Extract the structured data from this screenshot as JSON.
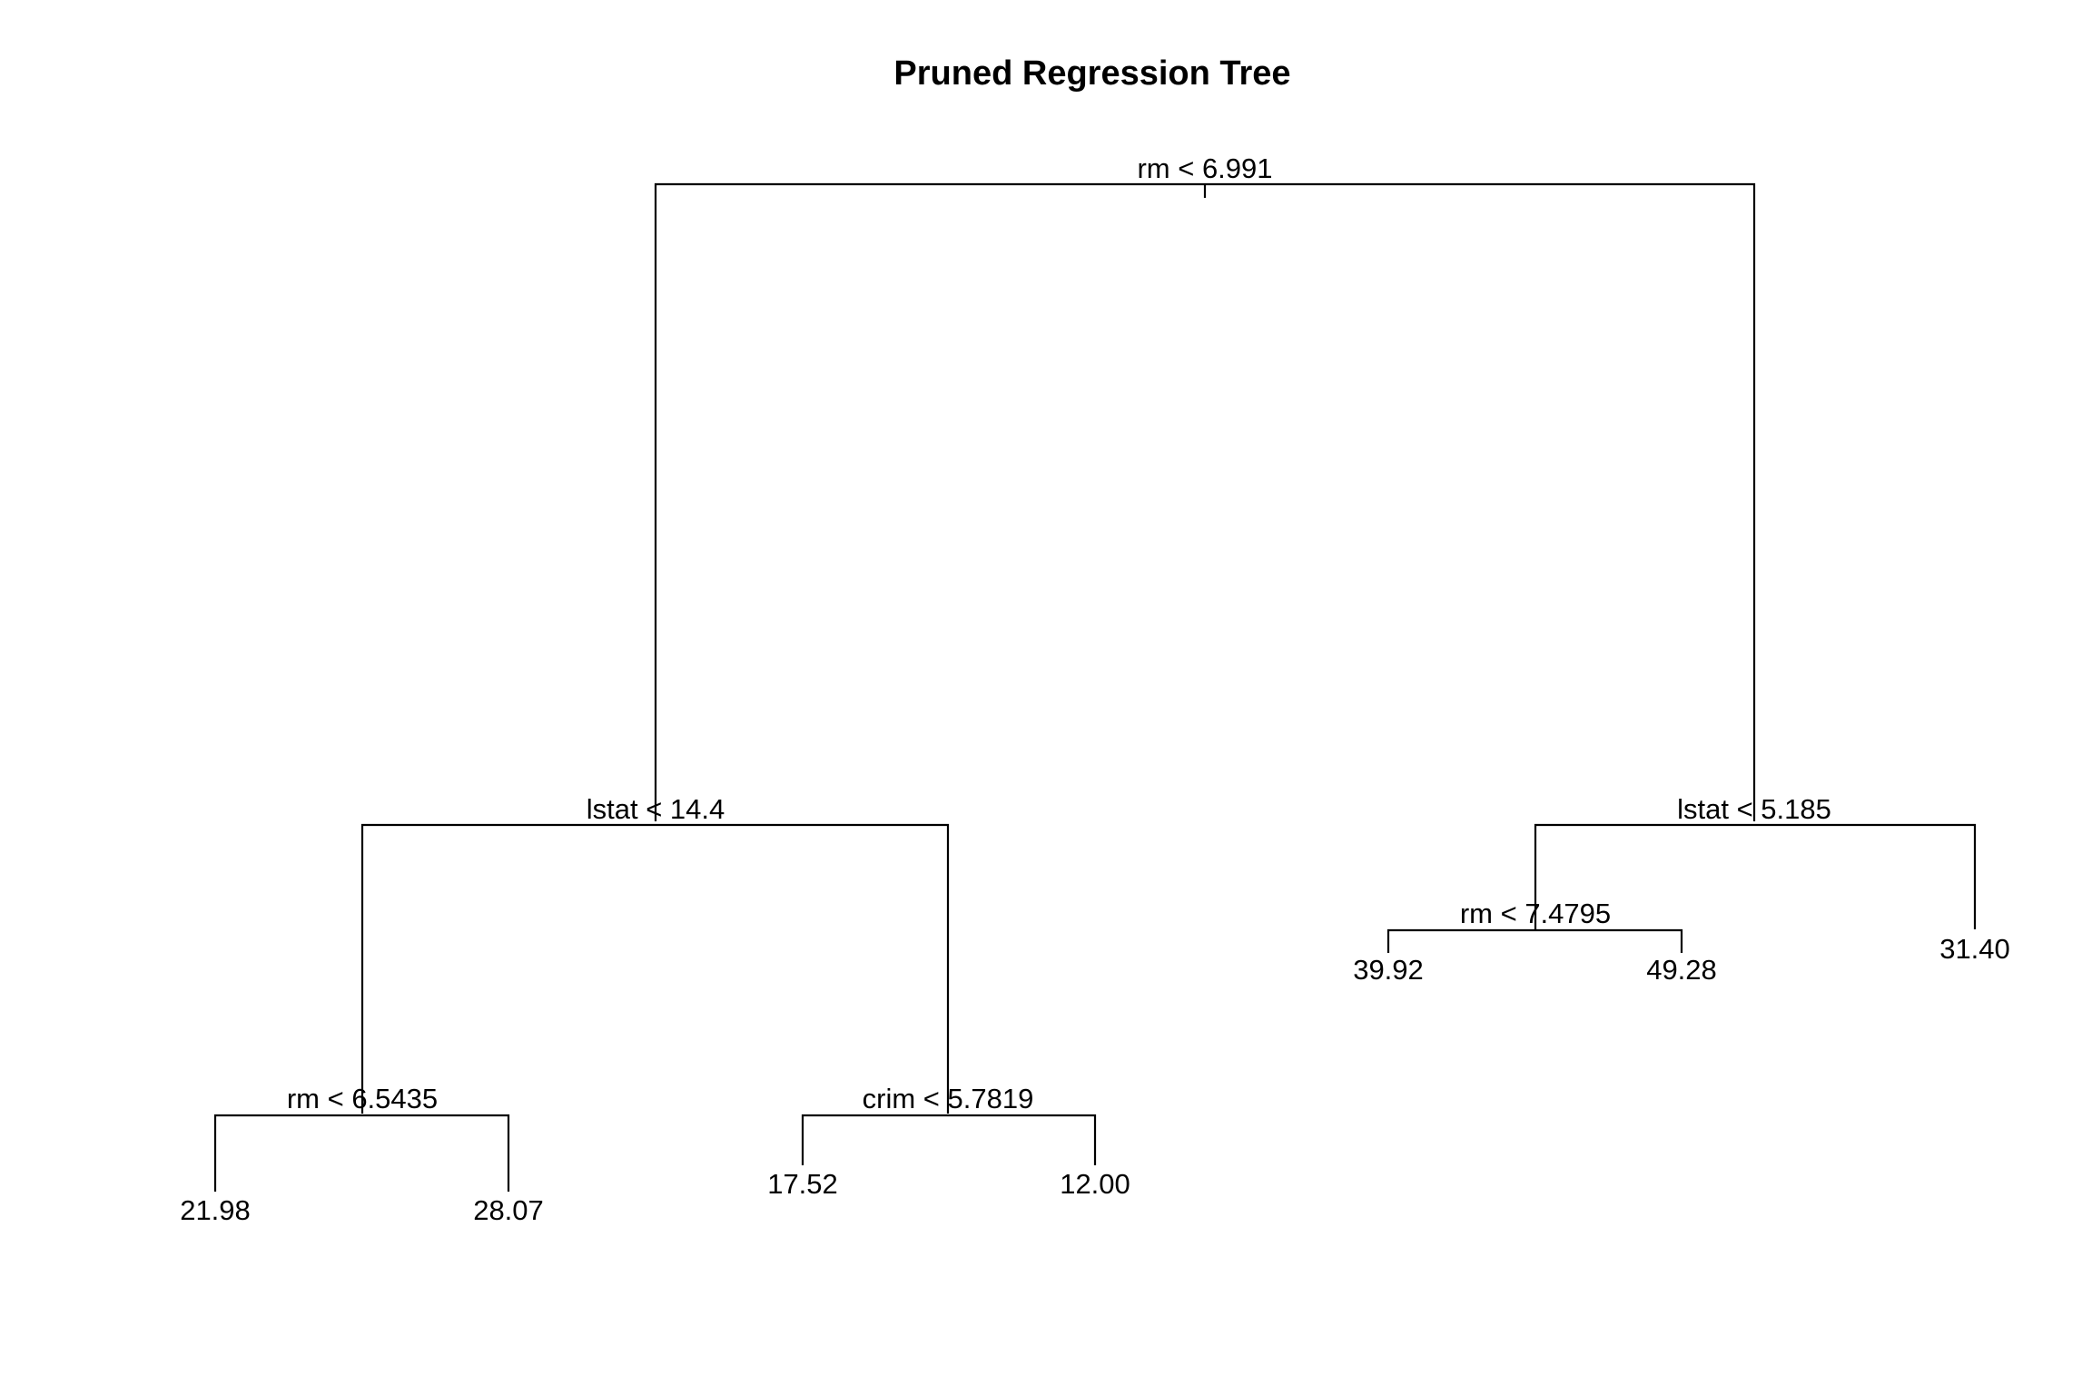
{
  "title": "Pruned Regression Tree",
  "tree": {
    "root": {
      "split": "rm < 6.991",
      "left": {
        "split": "lstat < 14.4",
        "left": {
          "split": "rm < 6.5435",
          "left": {
            "value": "21.98"
          },
          "right": {
            "value": "28.07"
          }
        },
        "right": {
          "split": "crim < 5.7819",
          "left": {
            "value": "17.52"
          },
          "right": {
            "value": "12.00"
          }
        }
      },
      "right": {
        "split": "lstat < 5.185",
        "left": {
          "split": "rm < 7.4795",
          "left": {
            "value": "39.92"
          },
          "right": {
            "value": "49.28"
          }
        },
        "right": {
          "value": "31.40"
        }
      }
    }
  }
}
